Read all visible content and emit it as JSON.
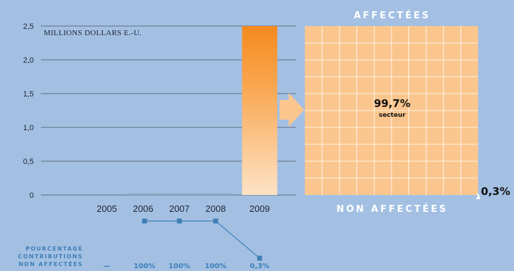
{
  "chart_data": {
    "type": "bar",
    "unit_label": "MILLIONS DOLLARS E.-U.",
    "y_ticks": [
      "0",
      "0,5",
      "1,0",
      "1,5",
      "2,0",
      "2,5"
    ],
    "ylim": [
      0,
      2.5
    ],
    "categories": [
      "2005",
      "2006",
      "2007",
      "2008",
      "2009"
    ],
    "values": [
      0,
      0.02,
      0.02,
      0.02,
      2.5
    ],
    "bar_color_top": "#f58a1f",
    "bar_color_bottom": "#fde3c6",
    "breakdown": {
      "top_title": "AFFECTÉES",
      "bottom_title": "NON AFFECTÉES",
      "affected_pct_label": "99,7%",
      "affected_sub_label": "secteur",
      "unaffected_pct_label": "0,3%",
      "grid_color": "#fbc68e",
      "affected_share": 0.997,
      "unaffected_share": 0.003
    },
    "unaffected_row": {
      "label_lines": [
        "POURCENTAGE",
        "CONTRIBUTIONS",
        "NON AFFECTÉES"
      ],
      "values": [
        "—",
        "100%",
        "100%",
        "100%",
        "0,3%"
      ],
      "series": [
        100,
        100,
        100,
        0.3
      ],
      "line_color": "#3f7fb6"
    }
  }
}
